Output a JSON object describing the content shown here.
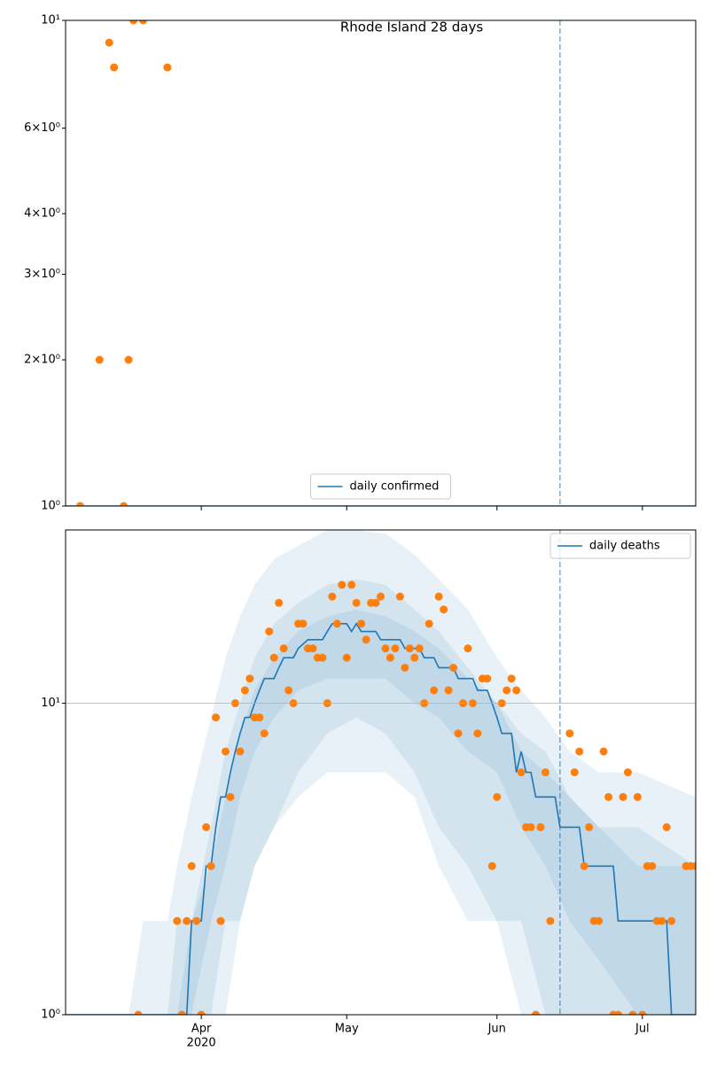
{
  "chart_data": [
    {
      "type": "line",
      "title": "Rhode Island 28 days",
      "log_y": true,
      "xlim": [
        "2020-03-04",
        "2020-07-12"
      ],
      "ylim": [
        1,
        10
      ],
      "xticks": [
        "2020-04-01",
        "2020-05-01",
        "2020-06-01",
        "2020-07-01"
      ],
      "yticks": [
        {
          "value": 1,
          "label": "10⁰"
        },
        {
          "value": 2,
          "label": "2×10⁰"
        },
        {
          "value": 3,
          "label": "3×10⁰"
        },
        {
          "value": 4,
          "label": "4×10⁰"
        },
        {
          "value": 6,
          "label": "6×10⁰"
        },
        {
          "value": 10,
          "label": "10¹"
        }
      ],
      "grid": false,
      "vline": "2020-06-14",
      "legend": "lower center",
      "series": [
        {
          "type": "line",
          "name": "daily confirmed",
          "color": "#1f77b4",
          "x": [
            "2020-03-04",
            "2020-07-12"
          ],
          "values": [
            1,
            1
          ]
        },
        {
          "type": "scatter",
          "color": "#ff7f0e",
          "x": [
            "2020-03-07",
            "2020-03-11",
            "2020-03-13",
            "2020-03-14",
            "2020-03-16",
            "2020-03-17",
            "2020-03-18",
            "2020-03-20",
            "2020-03-25"
          ],
          "values": [
            1,
            2,
            9,
            8,
            1,
            2,
            10,
            10,
            8
          ]
        }
      ]
    },
    {
      "type": "line",
      "log_y": true,
      "xlim": [
        "2020-03-04",
        "2020-07-12"
      ],
      "ylim": [
        1,
        36
      ],
      "xticks": [
        {
          "value": "2020-04-01",
          "label": "Apr"
        },
        {
          "value": "2020-05-01",
          "label": "May"
        },
        {
          "value": "2020-06-01",
          "label": "Jun"
        },
        {
          "value": "2020-07-01",
          "label": "Jul"
        }
      ],
      "x_year_label": "2020",
      "yticks": [
        {
          "value": 1,
          "label": "10⁰"
        },
        {
          "value": 10,
          "label": "10¹"
        }
      ],
      "grid": true,
      "vline": "2020-06-14",
      "legend": "upper right",
      "bands": [
        {
          "color": "#1f77b4",
          "x": [
            "2020-03-17",
            "2020-03-20",
            "2020-03-25",
            "2020-03-27",
            "2020-03-30",
            "2020-04-03",
            "2020-04-06",
            "2020-04-09",
            "2020-04-12",
            "2020-04-16",
            "2020-04-21",
            "2020-04-27",
            "2020-05-03",
            "2020-05-09",
            "2020-05-15",
            "2020-05-20",
            "2020-05-26",
            "2020-06-01",
            "2020-06-06",
            "2020-06-11",
            "2020-06-16",
            "2020-06-22",
            "2020-06-30",
            "2020-07-12"
          ],
          "upper": [
            1,
            2,
            2,
            3,
            5,
            9,
            14,
            19,
            24,
            29,
            32,
            36,
            36,
            35,
            30,
            25,
            20,
            14,
            11,
            9,
            7,
            6,
            6,
            5
          ],
          "lower": [
            1,
            1,
            1,
            1,
            1,
            1,
            1,
            2,
            3,
            4,
            5,
            6,
            6,
            6,
            5,
            3,
            2,
            2,
            1,
            1,
            1,
            1,
            1,
            1
          ]
        },
        {
          "color": "#1f77b4",
          "x": [
            "2020-03-17",
            "2020-03-20",
            "2020-03-25",
            "2020-03-27",
            "2020-03-30",
            "2020-04-03",
            "2020-04-06",
            "2020-04-09",
            "2020-04-12",
            "2020-04-16",
            "2020-04-21",
            "2020-04-27",
            "2020-05-03",
            "2020-05-09",
            "2020-05-15",
            "2020-05-20",
            "2020-05-26",
            "2020-06-01",
            "2020-06-06",
            "2020-06-11",
            "2020-06-16",
            "2020-06-22",
            "2020-06-30",
            "2020-07-12"
          ],
          "upper": [
            1,
            1,
            1,
            2,
            2,
            4,
            7,
            10,
            14,
            18,
            21,
            24,
            25,
            24,
            20,
            17,
            13,
            10,
            8,
            7,
            5,
            4,
            4,
            3
          ],
          "lower": [
            1,
            1,
            1,
            1,
            1,
            1,
            2,
            2,
            3,
            4,
            6,
            8,
            9,
            8,
            6,
            4,
            3,
            2,
            2,
            1,
            1,
            1,
            1,
            1
          ]
        },
        {
          "color": "#1f77b4",
          "x": [
            "2020-03-17",
            "2020-03-20",
            "2020-03-25",
            "2020-03-27",
            "2020-03-30",
            "2020-04-03",
            "2020-04-06",
            "2020-04-09",
            "2020-04-12",
            "2020-04-16",
            "2020-04-21",
            "2020-04-27",
            "2020-05-03",
            "2020-05-09",
            "2020-05-15",
            "2020-05-20",
            "2020-05-26",
            "2020-06-01",
            "2020-06-06",
            "2020-06-11",
            "2020-06-16",
            "2020-06-22",
            "2020-06-30",
            "2020-07-12"
          ],
          "upper": [
            1,
            1,
            1,
            1,
            2,
            3,
            5,
            8,
            11,
            14,
            17,
            19,
            20,
            19,
            17,
            15,
            12,
            10,
            7,
            6,
            5,
            4,
            3,
            3
          ],
          "lower": [
            1,
            1,
            1,
            1,
            1,
            2,
            3,
            5,
            7,
            9,
            11,
            12,
            12,
            12,
            10,
            9,
            7,
            6,
            4,
            3,
            2,
            1.5,
            1,
            1
          ]
        }
      ],
      "series": [
        {
          "type": "line",
          "name": "daily deaths",
          "color": "#1f77b4",
          "x": [
            "2020-03-04",
            "2020-03-29",
            "2020-03-30",
            "2020-04-01",
            "2020-04-02",
            "2020-04-03",
            "2020-04-04",
            "2020-04-05",
            "2020-04-06",
            "2020-04-07",
            "2020-04-08",
            "2020-04-09",
            "2020-04-10",
            "2020-04-11",
            "2020-04-12",
            "2020-04-13",
            "2020-04-14",
            "2020-04-16",
            "2020-04-17",
            "2020-04-18",
            "2020-04-20",
            "2020-04-21",
            "2020-04-23",
            "2020-04-26",
            "2020-04-27",
            "2020-04-28",
            "2020-05-01",
            "2020-05-02",
            "2020-05-03",
            "2020-05-04",
            "2020-05-07",
            "2020-05-08",
            "2020-05-12",
            "2020-05-13",
            "2020-05-16",
            "2020-05-17",
            "2020-05-19",
            "2020-05-20",
            "2020-05-23",
            "2020-05-24",
            "2020-05-27",
            "2020-05-28",
            "2020-05-30",
            "2020-05-31",
            "2020-06-01",
            "2020-06-02",
            "2020-06-04",
            "2020-06-05",
            "2020-06-06",
            "2020-06-07",
            "2020-06-08",
            "2020-06-09",
            "2020-06-13",
            "2020-06-14",
            "2020-06-18",
            "2020-06-19",
            "2020-06-25",
            "2020-06-26",
            "2020-07-06",
            "2020-07-07",
            "2020-07-12"
          ],
          "values": [
            1,
            1,
            2,
            2,
            3,
            3,
            4,
            5,
            5,
            6,
            7,
            8,
            9,
            9,
            10,
            11,
            12,
            12,
            13,
            14,
            14,
            15,
            16,
            16,
            17,
            18,
            18,
            17,
            18,
            17,
            17,
            16,
            16,
            15,
            15,
            14,
            14,
            13,
            13,
            12,
            12,
            11,
            11,
            10,
            9,
            8,
            8,
            6,
            7,
            6,
            6,
            5,
            5,
            4,
            4,
            3,
            3,
            2,
            2,
            1,
            1
          ]
        },
        {
          "type": "scatter",
          "color": "#ff7f0e",
          "x": [
            "2020-03-19",
            "2020-03-27",
            "2020-03-28",
            "2020-03-29",
            "2020-03-30",
            "2020-03-31",
            "2020-04-01",
            "2020-04-02",
            "2020-04-03",
            "2020-04-04",
            "2020-04-05",
            "2020-04-06",
            "2020-04-07",
            "2020-04-08",
            "2020-04-09",
            "2020-04-10",
            "2020-04-11",
            "2020-04-12",
            "2020-04-13",
            "2020-04-14",
            "2020-04-15",
            "2020-04-16",
            "2020-04-17",
            "2020-04-18",
            "2020-04-19",
            "2020-04-20",
            "2020-04-21",
            "2020-04-22",
            "2020-04-23",
            "2020-04-24",
            "2020-04-25",
            "2020-04-26",
            "2020-04-27",
            "2020-04-28",
            "2020-04-29",
            "2020-04-30",
            "2020-05-01",
            "2020-05-02",
            "2020-05-03",
            "2020-05-04",
            "2020-05-05",
            "2020-05-06",
            "2020-05-07",
            "2020-05-08",
            "2020-05-09",
            "2020-05-10",
            "2020-05-11",
            "2020-05-12",
            "2020-05-13",
            "2020-05-14",
            "2020-05-15",
            "2020-05-16",
            "2020-05-17",
            "2020-05-18",
            "2020-05-19",
            "2020-05-20",
            "2020-05-21",
            "2020-05-22",
            "2020-05-23",
            "2020-05-24",
            "2020-05-25",
            "2020-05-26",
            "2020-05-27",
            "2020-05-28",
            "2020-05-29",
            "2020-05-30",
            "2020-05-31",
            "2020-06-01",
            "2020-06-02",
            "2020-06-03",
            "2020-06-04",
            "2020-06-05",
            "2020-06-06",
            "2020-06-07",
            "2020-06-08",
            "2020-06-09",
            "2020-06-10",
            "2020-06-11",
            "2020-06-12",
            "2020-06-16",
            "2020-06-17",
            "2020-06-18",
            "2020-06-19",
            "2020-06-20",
            "2020-06-21",
            "2020-06-22",
            "2020-06-23",
            "2020-06-24",
            "2020-06-25",
            "2020-06-26",
            "2020-06-27",
            "2020-06-28",
            "2020-06-29",
            "2020-06-30",
            "2020-07-01",
            "2020-07-02",
            "2020-07-03",
            "2020-07-04",
            "2020-07-05",
            "2020-07-06",
            "2020-07-07",
            "2020-07-10",
            "2020-07-11",
            "2020-07-12"
          ],
          "values": [
            1,
            2,
            1,
            2,
            3,
            2,
            1,
            4,
            3,
            9,
            2,
            7,
            5,
            10,
            7,
            11,
            12,
            9,
            9,
            8,
            17,
            14,
            21,
            15,
            11,
            10,
            18,
            18,
            15,
            15,
            14,
            14,
            10,
            22,
            18,
            24,
            14,
            24,
            21,
            18,
            16,
            21,
            21,
            22,
            15,
            14,
            15,
            22,
            13,
            15,
            14,
            15,
            10,
            18,
            11,
            22,
            20,
            11,
            13,
            8,
            10,
            15,
            10,
            8,
            12,
            12,
            3,
            5,
            10,
            11,
            12,
            11,
            6,
            4,
            4,
            1,
            4,
            6,
            2,
            8,
            6,
            7,
            3,
            4,
            2,
            2,
            7,
            5,
            1,
            1,
            5,
            6,
            1,
            5,
            1,
            3,
            3,
            2,
            2,
            4,
            2,
            3,
            3,
            3
          ]
        }
      ]
    }
  ]
}
